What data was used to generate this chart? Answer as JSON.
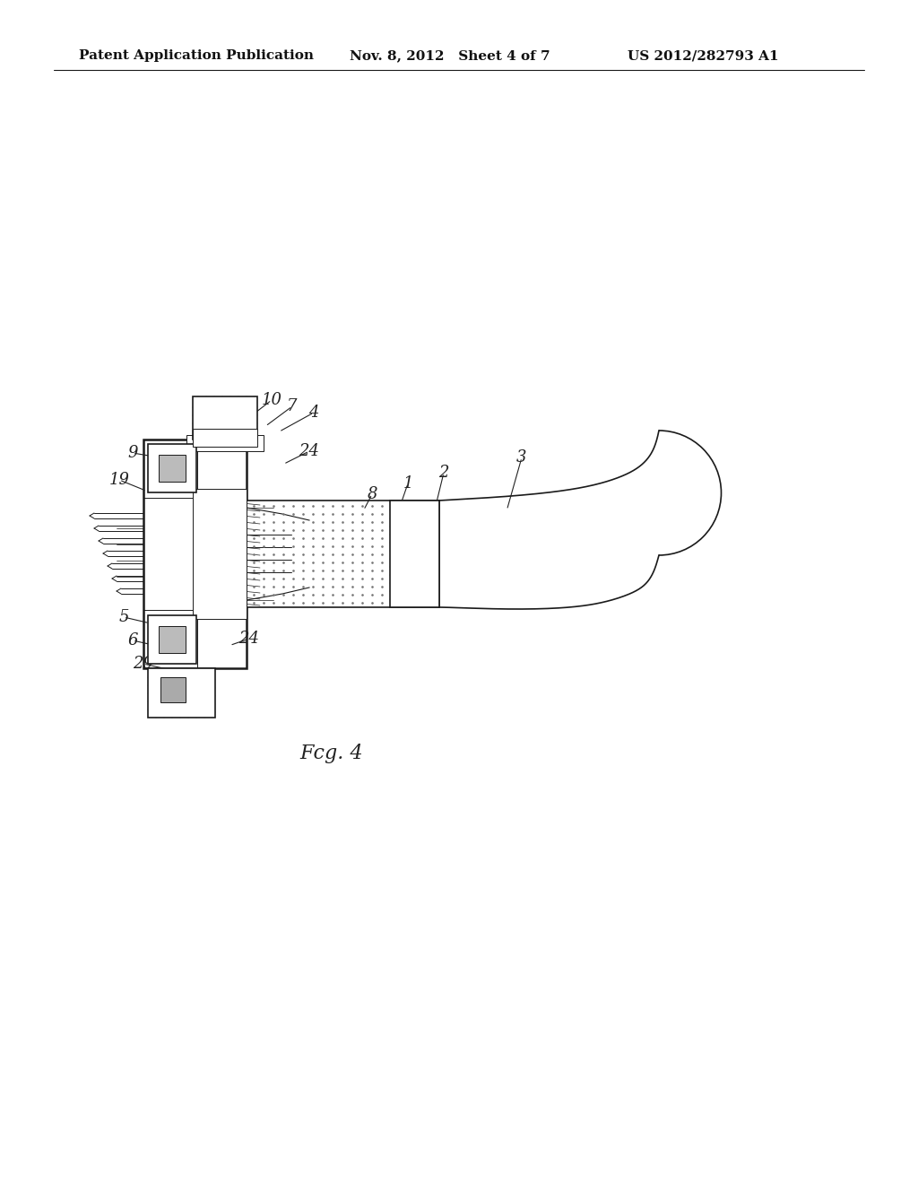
{
  "background_color": "#ffffff",
  "header_left": "Patent Application Publication",
  "header_mid": "Nov. 8, 2012   Sheet 4 of 7",
  "header_right": "US 2012/282793 A1",
  "figure_label": "Fcg. 4",
  "line_color": "#1a1a1a",
  "title_fontsize": 11,
  "label_fontsize": 13,
  "fig_label_fontsize": 16
}
